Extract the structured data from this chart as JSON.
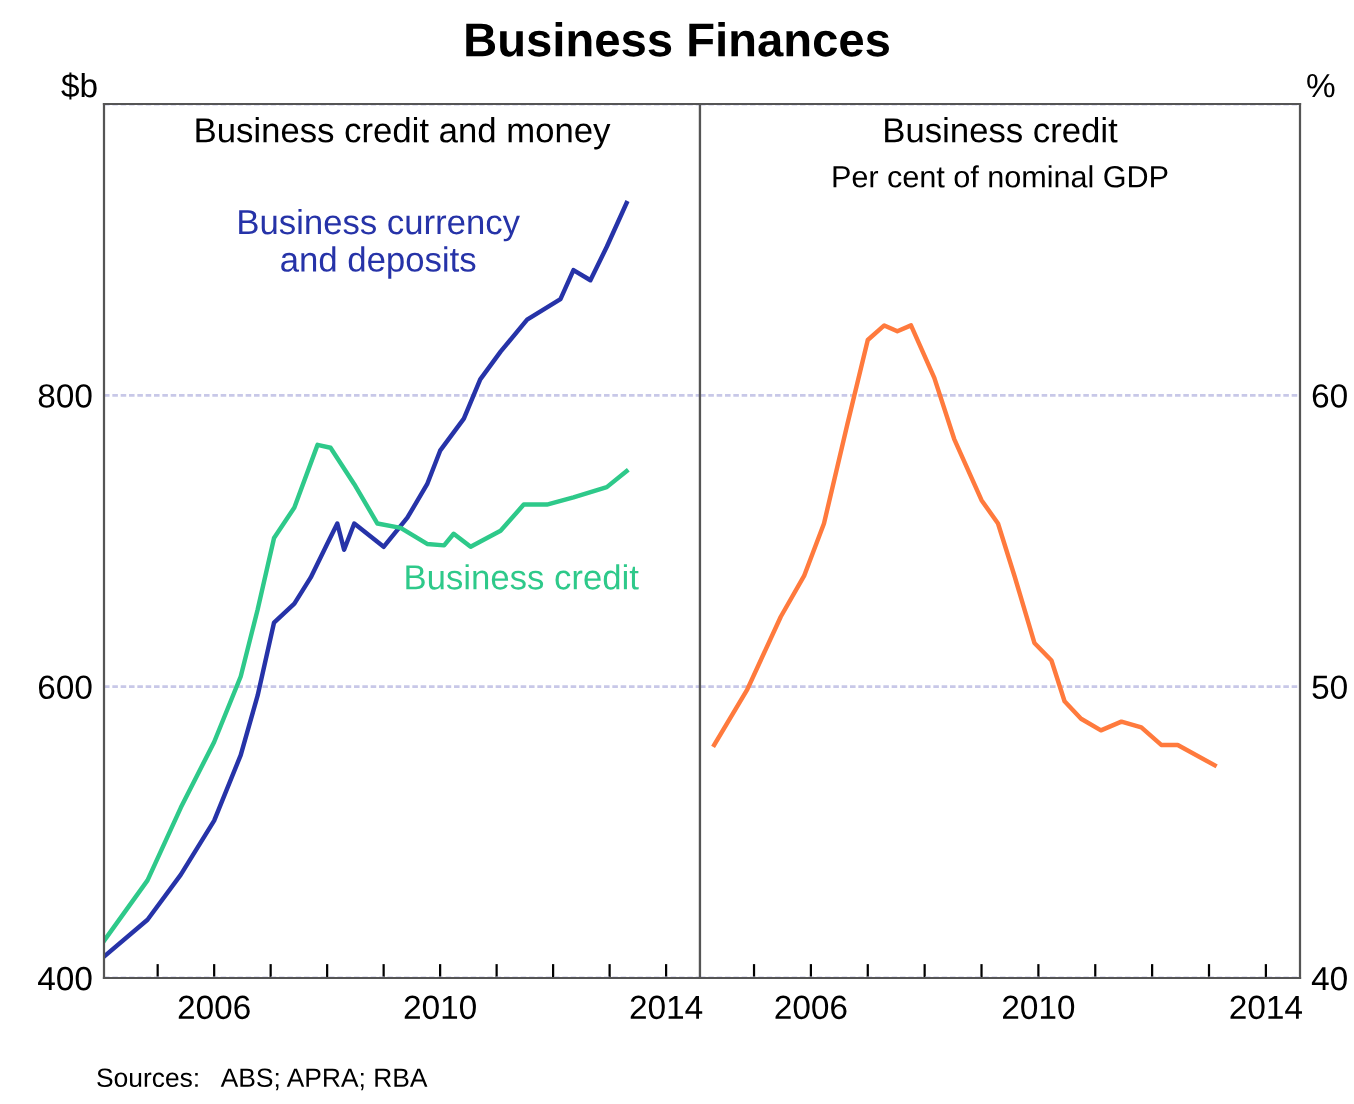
{
  "chart_data": [
    {
      "type": "line",
      "title": "Business credit and money",
      "ylabel": "$b",
      "annotations": [
        "Business Finances",
        "Sources:   ABS; APRA; RBA"
      ],
      "xlim": [
        2004.05,
        2014.6
      ],
      "xticks": [
        {
          "value": 2005,
          "label": null
        },
        2006,
        {
          "value": 2007,
          "label": null
        },
        {
          "value": 2008,
          "label": null
        },
        {
          "value": 2009,
          "label": null
        },
        2010,
        {
          "value": 2011,
          "label": null
        },
        {
          "value": 2012,
          "label": null
        },
        {
          "value": 2013,
          "label": null
        },
        2014
      ],
      "ylim": [
        400,
        1000
      ],
      "yticks": [
        400,
        600,
        800,
        {
          "value": 1000,
          "label": null
        }
      ],
      "grid": "y",
      "line_style": "solid",
      "series": [
        {
          "name": "Business currency\nand deposits",
          "color": "#2633a8",
          "x": [
            2004.06,
            2004.82,
            2005.41,
            2006.0,
            2006.47,
            2006.77,
            2007.06,
            2007.42,
            2007.71,
            2008.0,
            2008.18,
            2008.3,
            2008.48,
            2009.0,
            2009.42,
            2009.77,
            2010.0,
            2010.42,
            2010.71,
            2011.07,
            2011.54,
            2012.13,
            2012.36,
            2012.66,
            2012.95,
            2013.3
          ],
          "values": [
            415,
            440,
            471,
            508,
            553,
            594,
            644,
            657,
            675,
            698,
            712,
            694,
            712,
            696,
            716,
            739,
            762,
            784,
            811,
            830,
            852,
            866,
            886,
            879,
            902,
            932
          ]
        },
        {
          "name": "Business credit",
          "color": "#2ec98a",
          "x": [
            2004.06,
            2004.82,
            2005.41,
            2006.0,
            2006.47,
            2006.77,
            2007.06,
            2007.42,
            2007.83,
            2008.06,
            2008.48,
            2008.89,
            2009.3,
            2009.77,
            2010.07,
            2010.24,
            2010.54,
            2011.07,
            2011.48,
            2011.89,
            2012.36,
            2012.95,
            2013.3
          ],
          "values": [
            426,
            467,
            517,
            562,
            607,
            653,
            702,
            723,
            766,
            764,
            739,
            712,
            709,
            698,
            697,
            705,
            696,
            707,
            725,
            725,
            730,
            737,
            748
          ]
        }
      ]
    },
    {
      "type": "line",
      "title": "Business credit",
      "subtitle": "Per cent of nominal GDP",
      "ylabel": "%",
      "xlim": [
        2004.05,
        2014.6
      ],
      "xticks": [
        {
          "value": 2005,
          "label": null
        },
        2006,
        {
          "value": 2007,
          "label": null
        },
        {
          "value": 2008,
          "label": null
        },
        {
          "value": 2009,
          "label": null
        },
        2010,
        {
          "value": 2011,
          "label": null
        },
        {
          "value": 2012,
          "label": null
        },
        {
          "value": 2013,
          "label": null
        },
        2014
      ],
      "ylim": [
        40,
        70
      ],
      "yticks": [
        40,
        50,
        60,
        {
          "value": 70,
          "label": null
        }
      ],
      "grid": "y",
      "line_style": "solid",
      "series": [
        {
          "color": "#ff7a3d",
          "x": [
            2004.3,
            2004.88,
            2005.47,
            2005.88,
            2006.23,
            2006.64,
            2007.0,
            2007.29,
            2007.52,
            2007.76,
            2008.17,
            2008.52,
            2009.0,
            2009.29,
            2009.58,
            2009.93,
            2010.23,
            2010.46,
            2010.75,
            2011.1,
            2011.46,
            2011.81,
            2012.16,
            2012.45,
            2013.1
          ],
          "values": [
            48.0,
            49.9,
            52.4,
            53.8,
            55.6,
            59.0,
            61.9,
            62.4,
            62.2,
            62.4,
            60.6,
            58.5,
            56.4,
            55.6,
            53.8,
            51.5,
            50.9,
            49.5,
            48.9,
            48.5,
            48.8,
            48.6,
            48.0,
            48.0,
            47.3
          ]
        }
      ]
    }
  ]
}
